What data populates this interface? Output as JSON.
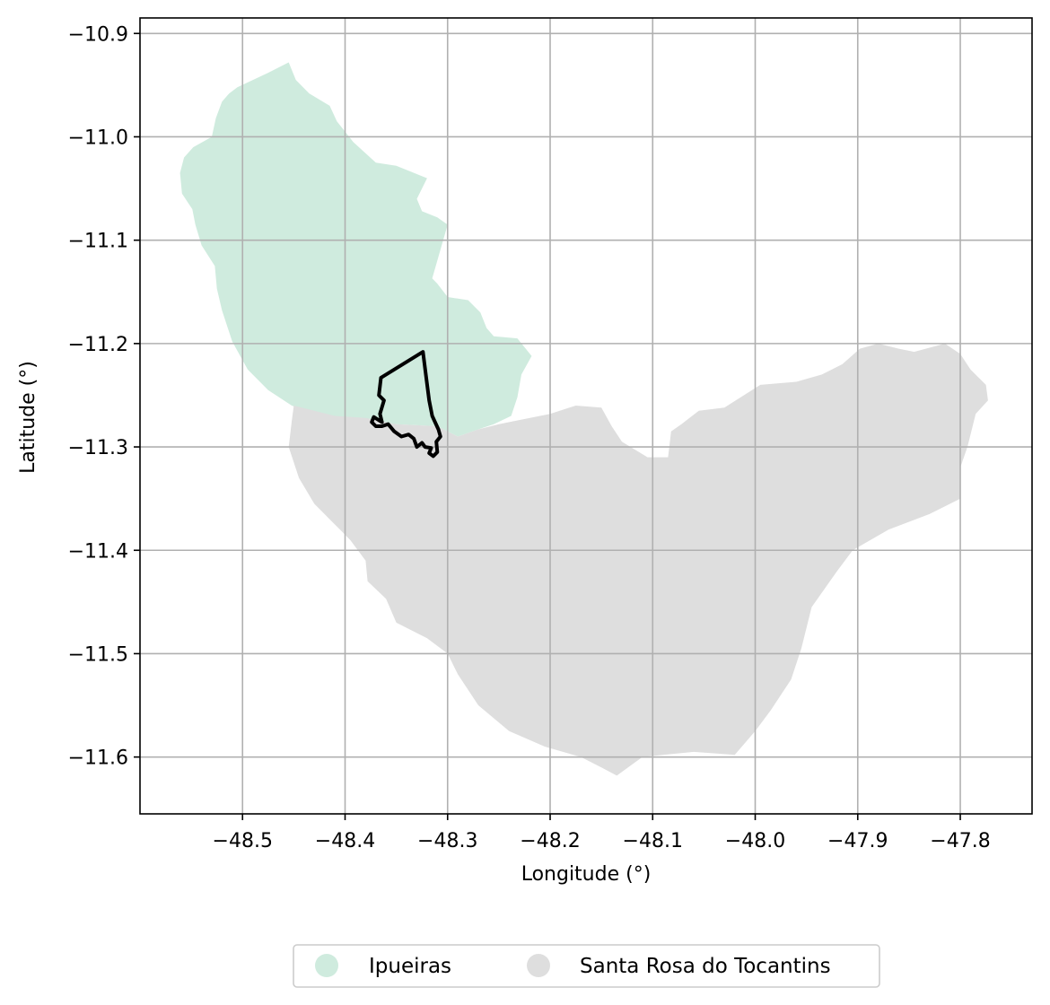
{
  "chart_data": {
    "type": "map",
    "xlabel": "Longitude (°)",
    "ylabel": "Latitude (°)",
    "xlim": [
      -48.6,
      -47.73
    ],
    "ylim": [
      -11.655,
      -10.885
    ],
    "grid": true,
    "x_ticks": [
      -48.5,
      -48.4,
      -48.3,
      -48.2,
      -48.1,
      -48.0,
      -47.9,
      -47.8
    ],
    "x_tick_labels": [
      "−48.5",
      "−48.4",
      "−48.3",
      "−48.2",
      "−48.1",
      "−48.0",
      "−47.9",
      "−47.8"
    ],
    "y_ticks": [
      -10.9,
      -11.0,
      -11.1,
      -11.2,
      -11.3,
      -11.4,
      -11.5,
      -11.6
    ],
    "y_tick_labels": [
      "−10.9",
      "−11.0",
      "−11.1",
      "−11.2",
      "−11.3",
      "−11.4",
      "−11.5",
      "−11.6"
    ],
    "legend_position": "bottom-center, below plot",
    "regions": [
      {
        "name": "Ipueiras",
        "color": "#cfebde",
        "boundary": [
          [
            -48.455,
            -10.928
          ],
          [
            -48.475,
            -10.938
          ],
          [
            -48.505,
            -10.952
          ],
          [
            -48.513,
            -10.958
          ],
          [
            -48.52,
            -10.966
          ],
          [
            -48.526,
            -10.982
          ],
          [
            -48.53,
            -11.0
          ],
          [
            -48.548,
            -11.01
          ],
          [
            -48.557,
            -11.02
          ],
          [
            -48.561,
            -11.035
          ],
          [
            -48.559,
            -11.055
          ],
          [
            -48.549,
            -11.07
          ],
          [
            -48.546,
            -11.085
          ],
          [
            -48.54,
            -11.105
          ],
          [
            -48.527,
            -11.125
          ],
          [
            -48.525,
            -11.147
          ],
          [
            -48.52,
            -11.168
          ],
          [
            -48.51,
            -11.198
          ],
          [
            -48.495,
            -11.225
          ],
          [
            -48.475,
            -11.245
          ],
          [
            -48.452,
            -11.26
          ],
          [
            -48.425,
            -11.27
          ],
          [
            -48.39,
            -11.275
          ],
          [
            -48.35,
            -11.278
          ],
          [
            -48.31,
            -11.28
          ],
          [
            -48.29,
            -11.29
          ],
          [
            -48.27,
            -11.283
          ],
          [
            -48.255,
            -11.278
          ],
          [
            -48.238,
            -11.27
          ],
          [
            -48.232,
            -11.252
          ],
          [
            -48.228,
            -11.23
          ],
          [
            -48.218,
            -11.212
          ],
          [
            -48.232,
            -11.195
          ],
          [
            -48.255,
            -11.193
          ],
          [
            -48.262,
            -11.185
          ],
          [
            -48.268,
            -11.17
          ],
          [
            -48.28,
            -11.158
          ],
          [
            -48.3,
            -11.155
          ],
          [
            -48.31,
            -11.142
          ],
          [
            -48.315,
            -11.137
          ],
          [
            -48.3,
            -11.085
          ],
          [
            -48.31,
            -11.078
          ],
          [
            -48.325,
            -11.072
          ],
          [
            -48.33,
            -11.06
          ],
          [
            -48.32,
            -11.04
          ],
          [
            -48.35,
            -11.028
          ],
          [
            -48.37,
            -11.025
          ],
          [
            -48.392,
            -11.005
          ],
          [
            -48.408,
            -10.985
          ],
          [
            -48.415,
            -10.97
          ],
          [
            -48.435,
            -10.958
          ],
          [
            -48.448,
            -10.945
          ]
        ]
      },
      {
        "name": "Santa Rosa do Tocantins",
        "color": "#dedede",
        "boundary": [
          [
            -48.45,
            -11.26
          ],
          [
            -48.43,
            -11.265
          ],
          [
            -48.41,
            -11.27
          ],
          [
            -48.38,
            -11.272
          ],
          [
            -48.35,
            -11.278
          ],
          [
            -48.31,
            -11.28
          ],
          [
            -48.29,
            -11.29
          ],
          [
            -48.27,
            -11.283
          ],
          [
            -48.25,
            -11.278
          ],
          [
            -48.235,
            -11.275
          ],
          [
            -48.2,
            -11.268
          ],
          [
            -48.175,
            -11.26
          ],
          [
            -48.15,
            -11.262
          ],
          [
            -48.14,
            -11.28
          ],
          [
            -48.13,
            -11.295
          ],
          [
            -48.105,
            -11.31
          ],
          [
            -48.085,
            -11.31
          ],
          [
            -48.082,
            -11.285
          ],
          [
            -48.072,
            -11.278
          ],
          [
            -48.055,
            -11.265
          ],
          [
            -48.03,
            -11.262
          ],
          [
            -47.995,
            -11.24
          ],
          [
            -47.96,
            -11.237
          ],
          [
            -47.935,
            -11.23
          ],
          [
            -47.915,
            -11.22
          ],
          [
            -47.898,
            -11.205
          ],
          [
            -47.88,
            -11.2
          ],
          [
            -47.86,
            -11.205
          ],
          [
            -47.845,
            -11.208
          ],
          [
            -47.815,
            -11.2
          ],
          [
            -47.8,
            -11.21
          ],
          [
            -47.79,
            -11.225
          ],
          [
            -47.775,
            -11.24
          ],
          [
            -47.773,
            -11.255
          ],
          [
            -47.785,
            -11.268
          ],
          [
            -47.793,
            -11.3
          ],
          [
            -47.8,
            -11.32
          ],
          [
            -47.8,
            -11.35
          ],
          [
            -47.83,
            -11.365
          ],
          [
            -47.87,
            -11.38
          ],
          [
            -47.905,
            -11.4
          ],
          [
            -47.92,
            -11.42
          ],
          [
            -47.945,
            -11.455
          ],
          [
            -47.955,
            -11.495
          ],
          [
            -47.965,
            -11.525
          ],
          [
            -47.985,
            -11.555
          ],
          [
            -48.0,
            -11.575
          ],
          [
            -48.02,
            -11.598
          ],
          [
            -48.06,
            -11.595
          ],
          [
            -48.09,
            -11.598
          ],
          [
            -48.11,
            -11.6
          ],
          [
            -48.135,
            -11.618
          ],
          [
            -48.15,
            -11.61
          ],
          [
            -48.17,
            -11.6
          ],
          [
            -48.205,
            -11.59
          ],
          [
            -48.24,
            -11.575
          ],
          [
            -48.27,
            -11.55
          ],
          [
            -48.29,
            -11.52
          ],
          [
            -48.3,
            -11.5
          ],
          [
            -48.32,
            -11.485
          ],
          [
            -48.35,
            -11.47
          ],
          [
            -48.36,
            -11.447
          ],
          [
            -48.378,
            -11.43
          ],
          [
            -48.38,
            -11.41
          ],
          [
            -48.395,
            -11.39
          ],
          [
            -48.415,
            -11.37
          ],
          [
            -48.43,
            -11.355
          ],
          [
            -48.445,
            -11.33
          ],
          [
            -48.455,
            -11.3
          ],
          [
            -48.452,
            -11.275
          ]
        ]
      }
    ],
    "highlight_outline": {
      "color": "#000000",
      "boundary": [
        [
          -48.324,
          -11.208
        ],
        [
          -48.365,
          -11.233
        ],
        [
          -48.367,
          -11.25
        ],
        [
          -48.362,
          -11.255
        ],
        [
          -48.366,
          -11.268
        ],
        [
          -48.364,
          -11.276
        ],
        [
          -48.372,
          -11.271
        ],
        [
          -48.374,
          -11.276
        ],
        [
          -48.37,
          -11.28
        ],
        [
          -48.364,
          -11.28
        ],
        [
          -48.358,
          -11.278
        ],
        [
          -48.352,
          -11.285
        ],
        [
          -48.345,
          -11.29
        ],
        [
          -48.338,
          -11.288
        ],
        [
          -48.333,
          -11.292
        ],
        [
          -48.33,
          -11.3
        ],
        [
          -48.325,
          -11.296
        ],
        [
          -48.322,
          -11.3
        ],
        [
          -48.316,
          -11.301
        ],
        [
          -48.318,
          -11.306
        ],
        [
          -48.314,
          -11.309
        ],
        [
          -48.31,
          -11.305
        ],
        [
          -48.311,
          -11.295
        ],
        [
          -48.307,
          -11.29
        ],
        [
          -48.309,
          -11.283
        ],
        [
          -48.315,
          -11.27
        ],
        [
          -48.318,
          -11.255
        ],
        [
          -48.321,
          -11.232
        ]
      ]
    },
    "legend": [
      {
        "label": "Ipueiras",
        "color": "#cfebde"
      },
      {
        "label": "Santa Rosa do Tocantins",
        "color": "#dedede"
      }
    ]
  }
}
